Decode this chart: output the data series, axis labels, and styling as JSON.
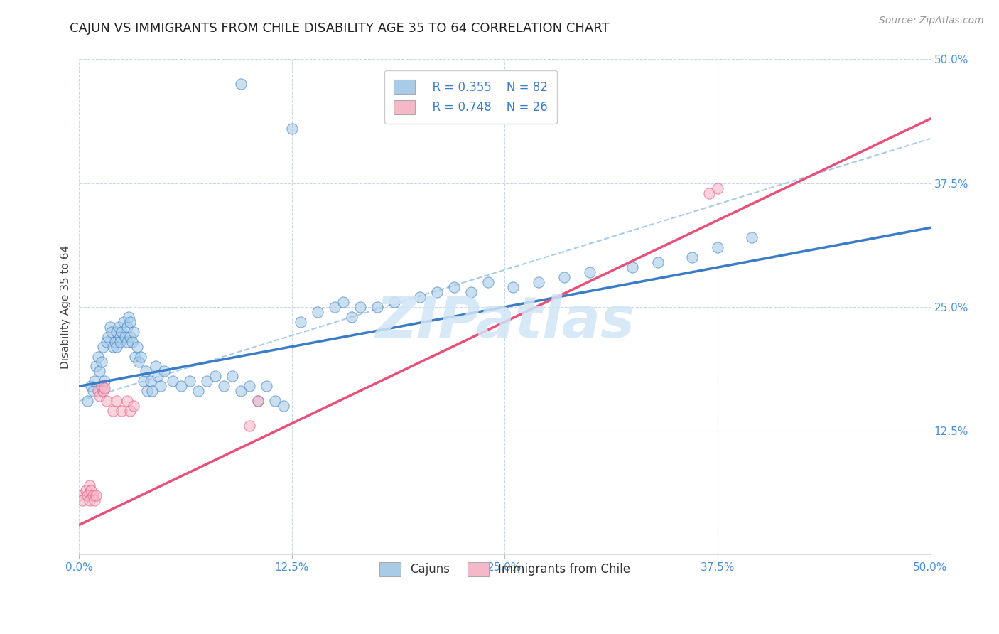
{
  "title": "CAJUN VS IMMIGRANTS FROM CHILE DISABILITY AGE 35 TO 64 CORRELATION CHART",
  "source": "Source: ZipAtlas.com",
  "ylabel": "Disability Age 35 to 64",
  "xlim": [
    0.0,
    0.5
  ],
  "ylim": [
    0.0,
    0.5
  ],
  "xtick_vals": [
    0.0,
    0.125,
    0.25,
    0.375,
    0.5
  ],
  "ytick_vals": [
    0.125,
    0.25,
    0.375,
    0.5
  ],
  "ytick_right_vals": [
    0.125,
    0.25,
    0.375,
    0.5
  ],
  "cajun_color": "#a8cce8",
  "chile_color": "#f5b8c8",
  "cajun_line_color": "#3a7cc8",
  "chile_line_color": "#e8507a",
  "dashed_line_color": "#a8cce8",
  "tick_color": "#4a90d9",
  "background_color": "#ffffff",
  "grid_color": "#c8d8ec",
  "legend_R_cajun": "R = 0.355",
  "legend_N_cajun": "N = 82",
  "legend_R_chile": "R = 0.748",
  "legend_N_chile": "N = 26",
  "cajun_scatter": [
    [
      0.005,
      0.155
    ],
    [
      0.007,
      0.17
    ],
    [
      0.008,
      0.165
    ],
    [
      0.009,
      0.175
    ],
    [
      0.01,
      0.19
    ],
    [
      0.011,
      0.2
    ],
    [
      0.012,
      0.185
    ],
    [
      0.013,
      0.195
    ],
    [
      0.014,
      0.21
    ],
    [
      0.015,
      0.175
    ],
    [
      0.016,
      0.215
    ],
    [
      0.017,
      0.22
    ],
    [
      0.018,
      0.23
    ],
    [
      0.019,
      0.225
    ],
    [
      0.02,
      0.21
    ],
    [
      0.021,
      0.215
    ],
    [
      0.022,
      0.225
    ],
    [
      0.022,
      0.21
    ],
    [
      0.023,
      0.23
    ],
    [
      0.024,
      0.22
    ],
    [
      0.024,
      0.215
    ],
    [
      0.025,
      0.225
    ],
    [
      0.026,
      0.235
    ],
    [
      0.027,
      0.22
    ],
    [
      0.028,
      0.23
    ],
    [
      0.028,
      0.215
    ],
    [
      0.029,
      0.24
    ],
    [
      0.03,
      0.22
    ],
    [
      0.03,
      0.235
    ],
    [
      0.031,
      0.215
    ],
    [
      0.032,
      0.225
    ],
    [
      0.033,
      0.2
    ],
    [
      0.034,
      0.21
    ],
    [
      0.035,
      0.195
    ],
    [
      0.036,
      0.2
    ],
    [
      0.038,
      0.175
    ],
    [
      0.039,
      0.185
    ],
    [
      0.04,
      0.165
    ],
    [
      0.042,
      0.175
    ],
    [
      0.043,
      0.165
    ],
    [
      0.045,
      0.19
    ],
    [
      0.046,
      0.18
    ],
    [
      0.048,
      0.17
    ],
    [
      0.05,
      0.185
    ],
    [
      0.055,
      0.175
    ],
    [
      0.06,
      0.17
    ],
    [
      0.065,
      0.175
    ],
    [
      0.07,
      0.165
    ],
    [
      0.075,
      0.175
    ],
    [
      0.08,
      0.18
    ],
    [
      0.085,
      0.17
    ],
    [
      0.09,
      0.18
    ],
    [
      0.095,
      0.165
    ],
    [
      0.1,
      0.17
    ],
    [
      0.105,
      0.155
    ],
    [
      0.11,
      0.17
    ],
    [
      0.115,
      0.155
    ],
    [
      0.12,
      0.15
    ],
    [
      0.13,
      0.235
    ],
    [
      0.14,
      0.245
    ],
    [
      0.15,
      0.25
    ],
    [
      0.155,
      0.255
    ],
    [
      0.16,
      0.24
    ],
    [
      0.165,
      0.25
    ],
    [
      0.175,
      0.25
    ],
    [
      0.185,
      0.255
    ],
    [
      0.2,
      0.26
    ],
    [
      0.21,
      0.265
    ],
    [
      0.22,
      0.27
    ],
    [
      0.23,
      0.265
    ],
    [
      0.24,
      0.275
    ],
    [
      0.255,
      0.27
    ],
    [
      0.27,
      0.275
    ],
    [
      0.285,
      0.28
    ],
    [
      0.095,
      0.475
    ],
    [
      0.125,
      0.43
    ],
    [
      0.3,
      0.285
    ],
    [
      0.325,
      0.29
    ],
    [
      0.34,
      0.295
    ],
    [
      0.36,
      0.3
    ],
    [
      0.375,
      0.31
    ],
    [
      0.395,
      0.32
    ]
  ],
  "chile_scatter": [
    [
      0.0,
      0.06
    ],
    [
      0.002,
      0.055
    ],
    [
      0.004,
      0.065
    ],
    [
      0.005,
      0.06
    ],
    [
      0.006,
      0.055
    ],
    [
      0.006,
      0.07
    ],
    [
      0.007,
      0.065
    ],
    [
      0.008,
      0.06
    ],
    [
      0.009,
      0.055
    ],
    [
      0.01,
      0.06
    ],
    [
      0.011,
      0.165
    ],
    [
      0.012,
      0.16
    ],
    [
      0.013,
      0.17
    ],
    [
      0.014,
      0.165
    ],
    [
      0.015,
      0.168
    ],
    [
      0.016,
      0.155
    ],
    [
      0.02,
      0.145
    ],
    [
      0.022,
      0.155
    ],
    [
      0.025,
      0.145
    ],
    [
      0.028,
      0.155
    ],
    [
      0.03,
      0.145
    ],
    [
      0.032,
      0.15
    ],
    [
      0.1,
      0.13
    ],
    [
      0.105,
      0.155
    ],
    [
      0.37,
      0.365
    ],
    [
      0.375,
      0.37
    ]
  ],
  "cajun_line": {
    "x0": 0.0,
    "y0": 0.17,
    "x1": 0.5,
    "y1": 0.33
  },
  "chile_line": {
    "x0": 0.0,
    "y0": 0.03,
    "x1": 0.5,
    "y1": 0.44
  },
  "dashed_line": {
    "x0": 0.0,
    "y0": 0.155,
    "x1": 0.5,
    "y1": 0.42
  },
  "watermark": "ZIPatlas",
  "watermark_color": "#d0e4f5",
  "title_fontsize": 13,
  "axis_label_fontsize": 11,
  "tick_fontsize": 11,
  "legend_fontsize": 12,
  "source_fontsize": 10
}
